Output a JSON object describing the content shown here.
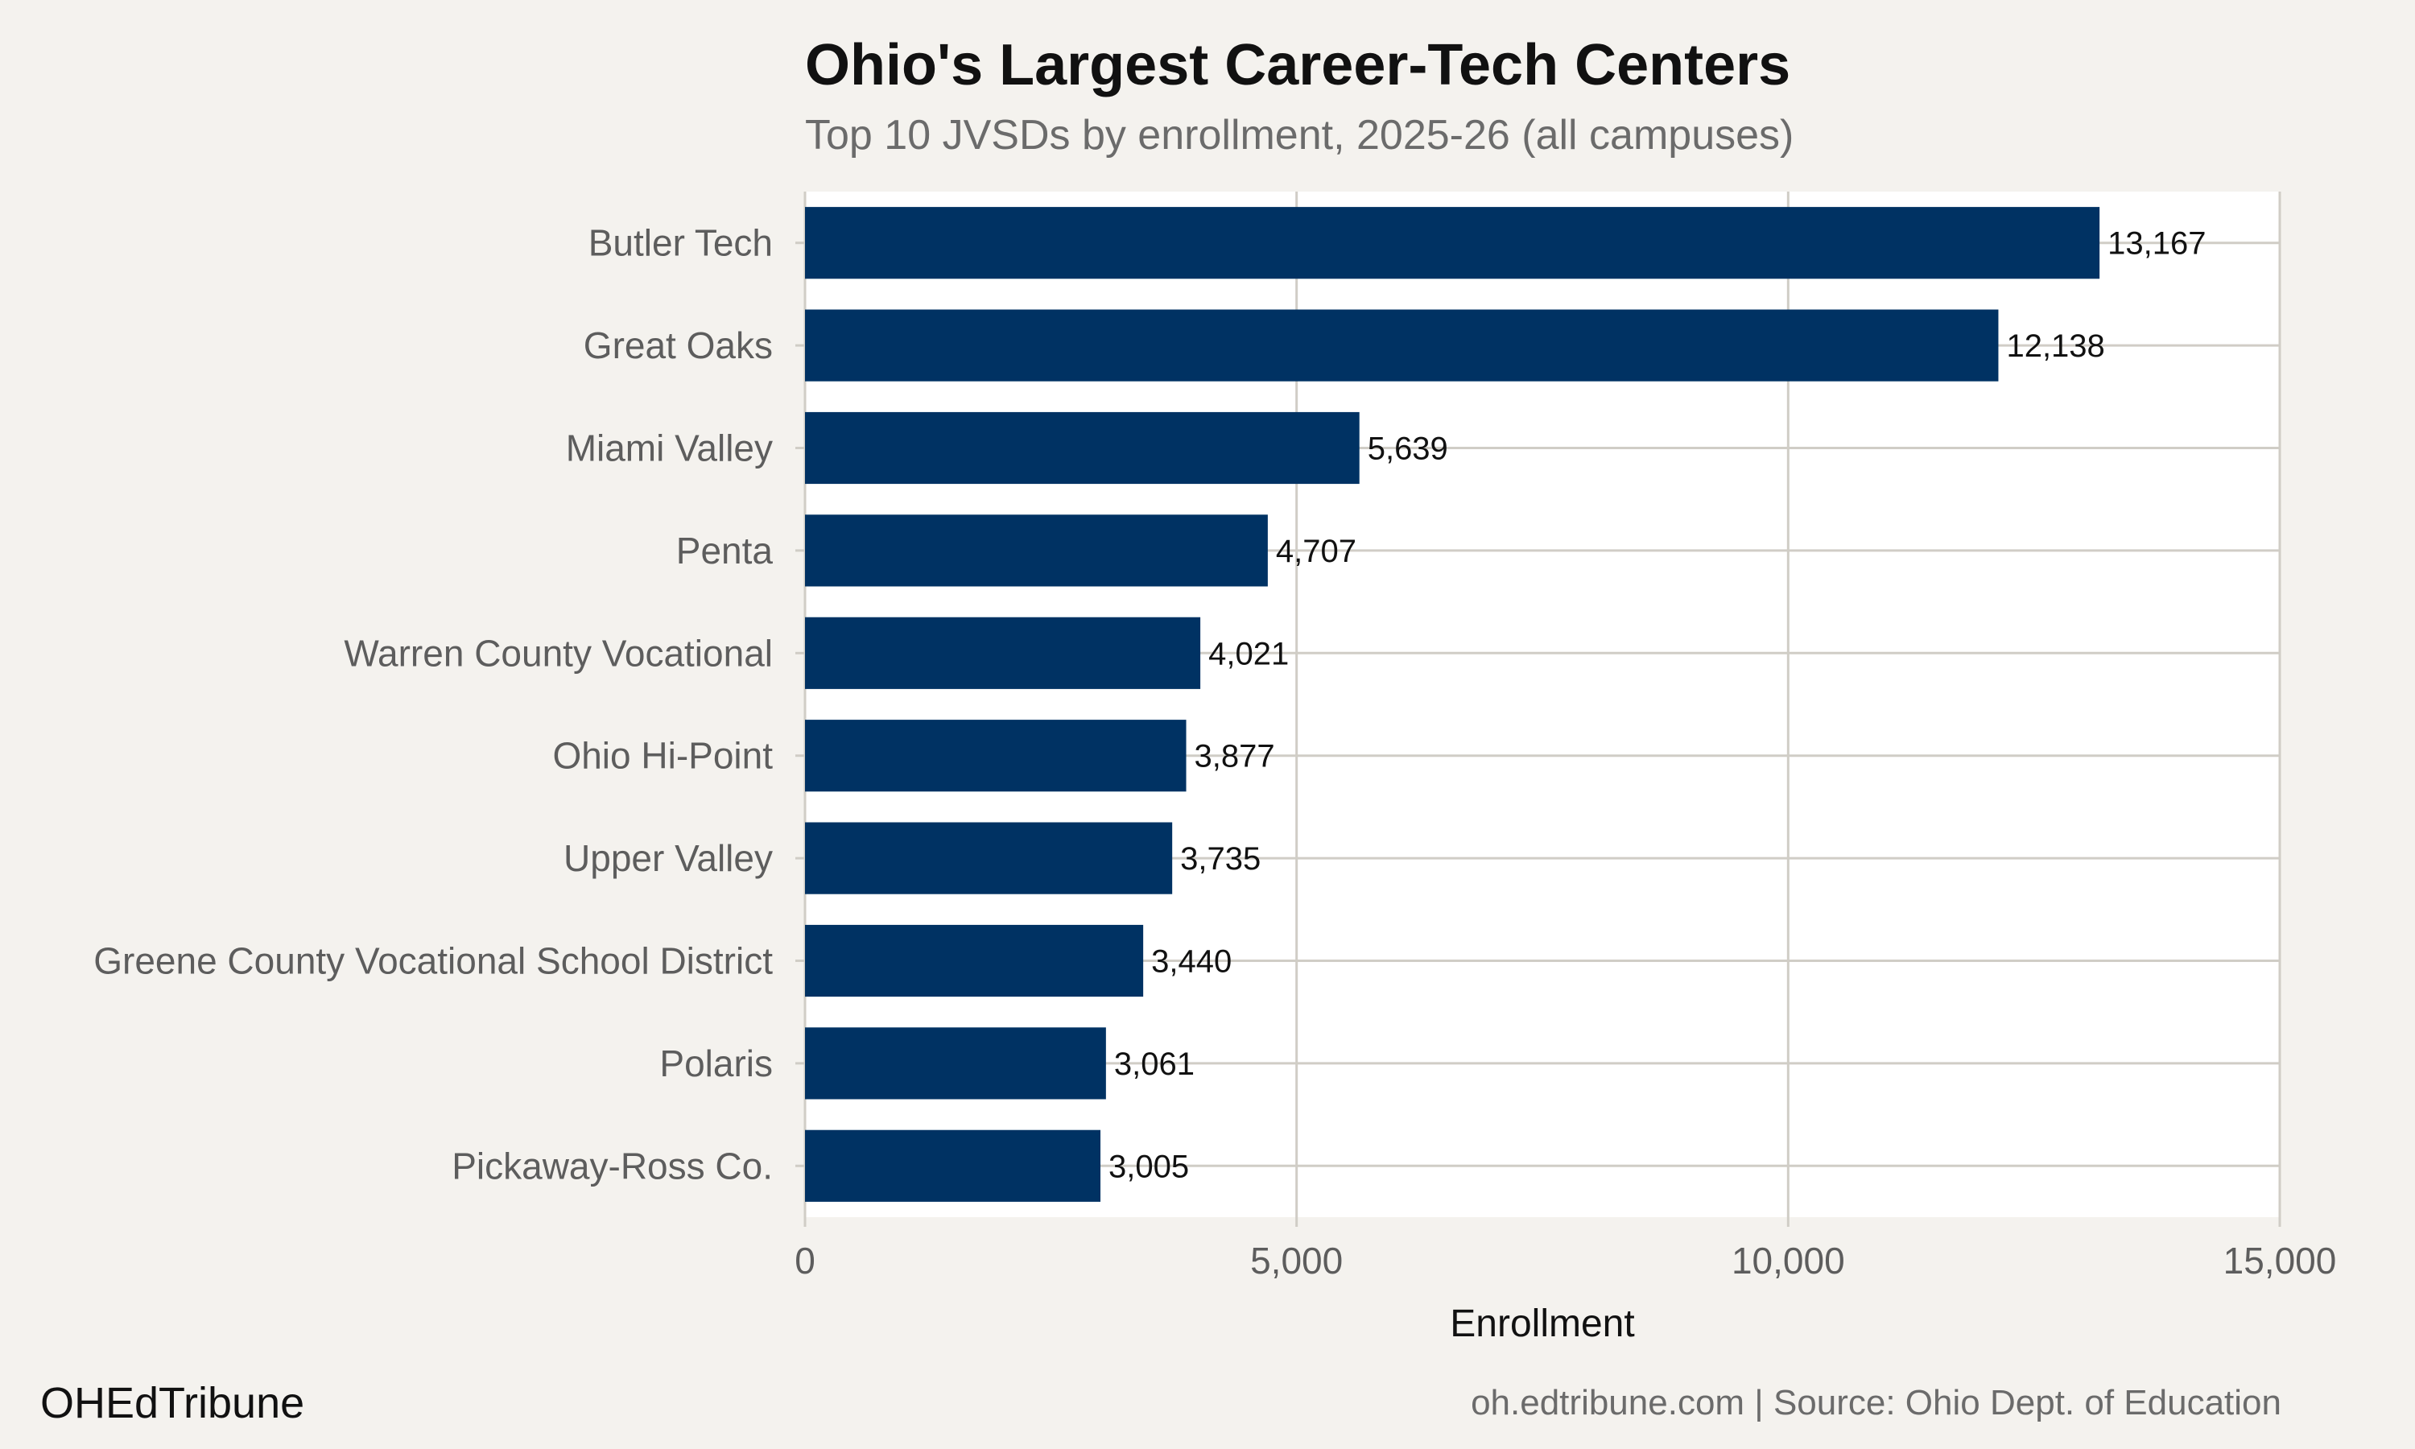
{
  "header": {
    "title": "Ohio's Largest Career-Tech Centers",
    "subtitle": "Top 10 JVSDs by enrollment, 2025-26 (all campuses)"
  },
  "footer": {
    "brand": "OHEdTribune",
    "credit": "oh.edtribune.com | Source: Ohio Dept. of Education"
  },
  "colors": {
    "bar": "#003263",
    "plot_background": "#ffffff",
    "page_background": "#f4f2ee",
    "grid": "#d0cdc6"
  },
  "chart_data": {
    "type": "bar",
    "orientation": "horizontal",
    "title": "Ohio's Largest Career-Tech Centers",
    "subtitle": "Top 10 JVSDs by enrollment, 2025-26 (all campuses)",
    "xlabel": "Enrollment",
    "ylabel": "",
    "categories": [
      "Butler Tech",
      "Great Oaks",
      "Miami Valley",
      "Penta",
      "Warren County Vocational",
      "Ohio Hi-Point",
      "Upper Valley",
      "Greene County Vocational School District",
      "Polaris",
      "Pickaway-Ross Co."
    ],
    "values": [
      13167,
      12138,
      5639,
      4707,
      4021,
      3877,
      3735,
      3440,
      3061,
      3005
    ],
    "value_labels": [
      "13,167",
      "12,138",
      "5,639",
      "4,707",
      "4,021",
      "3,877",
      "3,735",
      "3,440",
      "3,061",
      "3,005"
    ],
    "xlim": [
      0,
      15000
    ],
    "xticks": [
      0,
      5000,
      10000,
      15000
    ],
    "xtick_labels": [
      "0",
      "5,000",
      "10,000",
      "15,000"
    ],
    "grid": true,
    "legend": "none"
  }
}
